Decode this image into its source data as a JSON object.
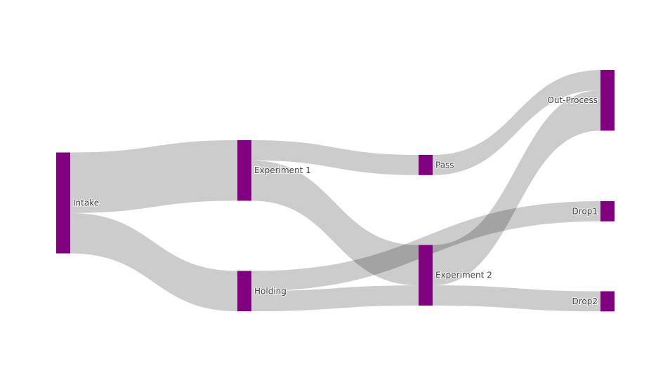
{
  "chart_data": {
    "type": "sankey",
    "colors": {
      "node": "#800080",
      "link": "#000000",
      "link_opacity": 0.2
    },
    "nodes": [
      {
        "id": "intake",
        "label": "Intake",
        "column": 0
      },
      {
        "id": "exp1",
        "label": "Experiment 1",
        "column": 1
      },
      {
        "id": "holding",
        "label": "Holding",
        "column": 1
      },
      {
        "id": "pass",
        "label": "Pass",
        "column": 2
      },
      {
        "id": "exp2",
        "label": "Experiment 2",
        "column": 2
      },
      {
        "id": "out",
        "label": "Out-Process",
        "column": 3
      },
      {
        "id": "drop1",
        "label": "Drop1",
        "column": 3
      },
      {
        "id": "drop2",
        "label": "Drop2",
        "column": 3
      }
    ],
    "links": [
      {
        "source": "intake",
        "target": "exp1",
        "value": 3
      },
      {
        "source": "intake",
        "target": "holding",
        "value": 2
      },
      {
        "source": "exp1",
        "target": "pass",
        "value": 1
      },
      {
        "source": "exp1",
        "target": "exp2",
        "value": 2
      },
      {
        "source": "holding",
        "target": "drop1",
        "value": 1
      },
      {
        "source": "holding",
        "target": "exp2",
        "value": 1
      },
      {
        "source": "pass",
        "target": "out",
        "value": 1
      },
      {
        "source": "exp2",
        "target": "out",
        "value": 2
      },
      {
        "source": "exp2",
        "target": "drop2",
        "value": 1
      }
    ]
  }
}
